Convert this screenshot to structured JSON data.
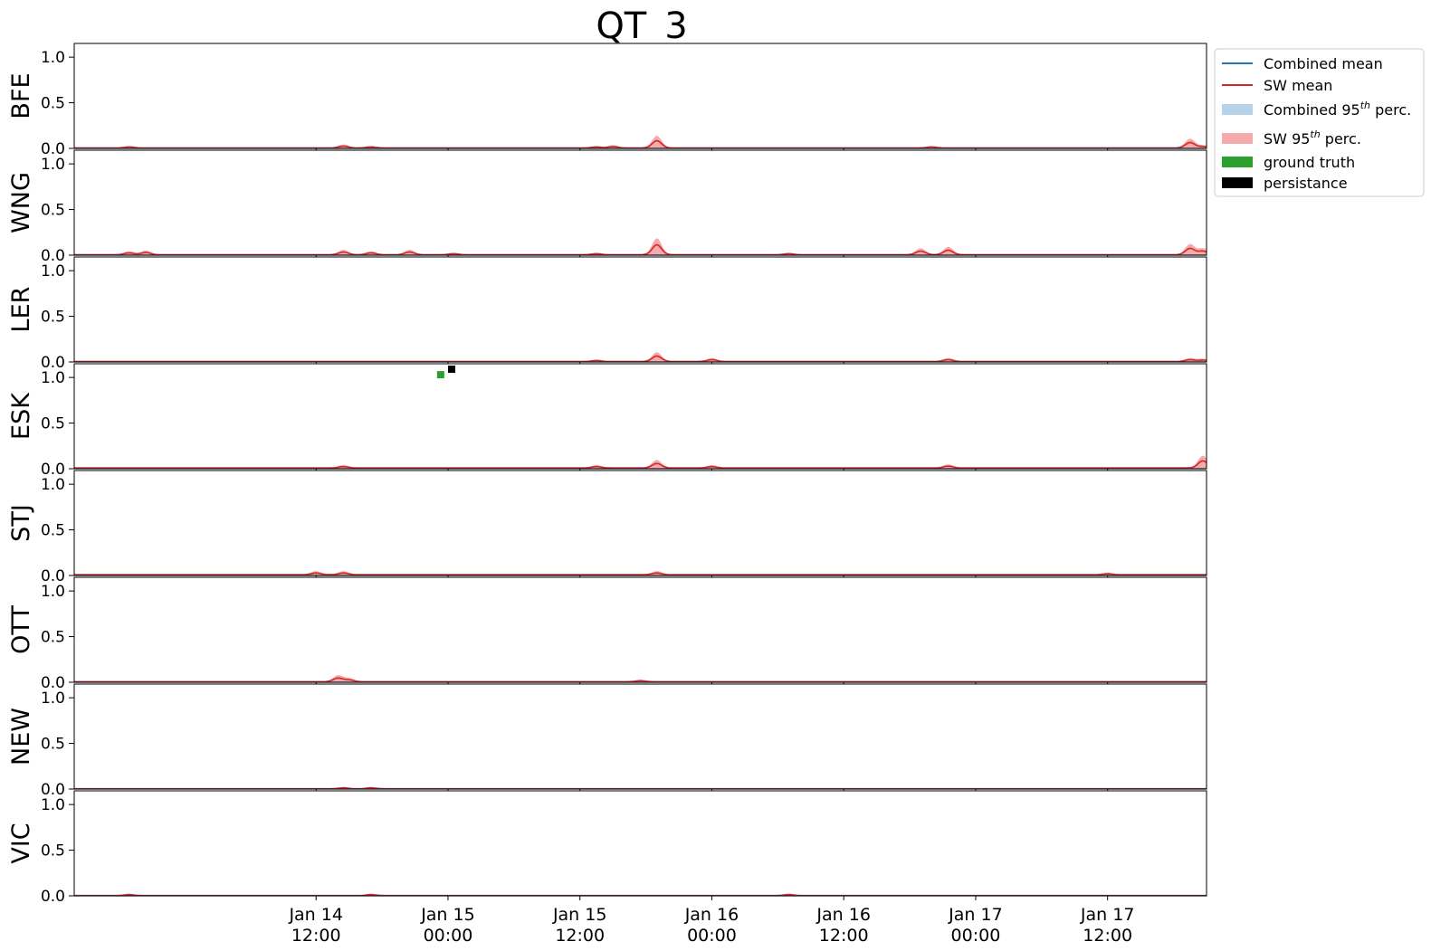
{
  "chart_data": {
    "type": "line",
    "title": "QT_3",
    "x_range": [
      "2024-01-13T14:00",
      "2024-01-17T21:00"
    ],
    "xticks": [
      {
        "t": "2024-01-14T12:00",
        "label_top": "Jan 14",
        "label_bottom": "12:00"
      },
      {
        "t": "2024-01-15T00:00",
        "label_top": "Jan 15",
        "label_bottom": "00:00"
      },
      {
        "t": "2024-01-15T12:00",
        "label_top": "Jan 15",
        "label_bottom": "12:00"
      },
      {
        "t": "2024-01-16T00:00",
        "label_top": "Jan 16",
        "label_bottom": "00:00"
      },
      {
        "t": "2024-01-16T12:00",
        "label_top": "Jan 16",
        "label_bottom": "12:00"
      },
      {
        "t": "2024-01-17T00:00",
        "label_top": "Jan 17",
        "label_bottom": "00:00"
      },
      {
        "t": "2024-01-17T12:00",
        "label_top": "Jan 17",
        "label_bottom": "12:00"
      }
    ],
    "ylim": [
      0,
      1.15
    ],
    "yticks": [
      0.0,
      0.5,
      1.0
    ],
    "ytick_labels": [
      "0.0",
      "0.5",
      "1.0"
    ],
    "legend": {
      "placement": "outside-top-right",
      "entries": [
        {
          "label": "Combined mean",
          "kind": "line",
          "color": "#1f77b4"
        },
        {
          "label": "SW mean",
          "kind": "line",
          "color": "#d62728"
        },
        {
          "label_pre": "Combined 95",
          "label_sup": "th",
          "label_post": " perc.",
          "kind": "patch",
          "color": "#b7d3e9"
        },
        {
          "label_pre": "SW 95",
          "label_sup": "th",
          "label_post": " perc.",
          "kind": "patch",
          "color": "#f5abab"
        },
        {
          "label": "ground truth",
          "kind": "patch",
          "color": "#2ca02c"
        },
        {
          "label": "persistance",
          "kind": "patch",
          "color": "#000000"
        }
      ]
    },
    "panels": [
      {
        "label": "BFE",
        "baseline": 0.005,
        "spikes": [
          [
            "2024-01-13T19:00",
            0.01
          ],
          [
            "2024-01-14T14:30",
            0.02
          ],
          [
            "2024-01-14T17:00",
            0.01
          ],
          [
            "2024-01-15T13:30",
            0.01
          ],
          [
            "2024-01-15T15:00",
            0.015
          ],
          [
            "2024-01-15T19:00",
            0.08
          ],
          [
            "2024-01-16T20:00",
            0.01
          ],
          [
            "2024-01-17T19:30",
            0.06
          ],
          [
            "2024-01-17T20:40",
            0.015
          ]
        ]
      },
      {
        "label": "WNG",
        "baseline": 0.005,
        "spikes": [
          [
            "2024-01-13T19:00",
            0.02
          ],
          [
            "2024-01-13T20:30",
            0.025
          ],
          [
            "2024-01-14T14:30",
            0.03
          ],
          [
            "2024-01-14T17:00",
            0.02
          ],
          [
            "2024-01-14T20:30",
            0.03
          ],
          [
            "2024-01-15T00:30",
            0.01
          ],
          [
            "2024-01-15T13:30",
            0.01
          ],
          [
            "2024-01-15T19:00",
            0.11
          ],
          [
            "2024-01-16T07:00",
            0.01
          ],
          [
            "2024-01-16T19:00",
            0.04
          ],
          [
            "2024-01-16T21:30",
            0.05
          ],
          [
            "2024-01-17T19:30",
            0.07
          ],
          [
            "2024-01-17T20:40",
            0.04
          ]
        ]
      },
      {
        "label": "LER",
        "baseline": 0.005,
        "spikes": [
          [
            "2024-01-15T13:30",
            0.01
          ],
          [
            "2024-01-15T19:00",
            0.06
          ],
          [
            "2024-01-16T00:00",
            0.02
          ],
          [
            "2024-01-16T21:30",
            0.02
          ],
          [
            "2024-01-17T19:30",
            0.02
          ],
          [
            "2024-01-17T20:40",
            0.015
          ]
        ]
      },
      {
        "label": "ESK",
        "baseline": 0.008,
        "spikes": [
          [
            "2024-01-14T14:30",
            0.015
          ],
          [
            "2024-01-15T13:30",
            0.015
          ],
          [
            "2024-01-15T19:00",
            0.05
          ],
          [
            "2024-01-16T00:00",
            0.015
          ],
          [
            "2024-01-16T21:30",
            0.02
          ],
          [
            "2024-01-17T20:40",
            0.08
          ]
        ],
        "ground_truth": [
          [
            "2024-01-14T23:20",
            1.03
          ]
        ],
        "persistance": [
          [
            "2024-01-15T00:20",
            1.09
          ]
        ]
      },
      {
        "label": "STJ",
        "baseline": 0.008,
        "spikes": [
          [
            "2024-01-14T12:00",
            0.02
          ],
          [
            "2024-01-14T14:30",
            0.02
          ],
          [
            "2024-01-15T19:00",
            0.02
          ],
          [
            "2024-01-17T12:00",
            0.01
          ]
        ]
      },
      {
        "label": "OTT",
        "baseline": 0.006,
        "spikes": [
          [
            "2024-01-14T14:00",
            0.04
          ],
          [
            "2024-01-14T15:00",
            0.02
          ],
          [
            "2024-01-15T17:30",
            0.01
          ]
        ]
      },
      {
        "label": "NEW",
        "baseline": 0.003,
        "spikes": [
          [
            "2024-01-14T14:30",
            0.01
          ],
          [
            "2024-01-14T17:00",
            0.01
          ]
        ]
      },
      {
        "label": "VIC",
        "baseline": 0.003,
        "spikes": [
          [
            "2024-01-13T19:00",
            0.01
          ],
          [
            "2024-01-14T17:00",
            0.01
          ],
          [
            "2024-01-16T07:00",
            0.01
          ]
        ]
      }
    ]
  }
}
